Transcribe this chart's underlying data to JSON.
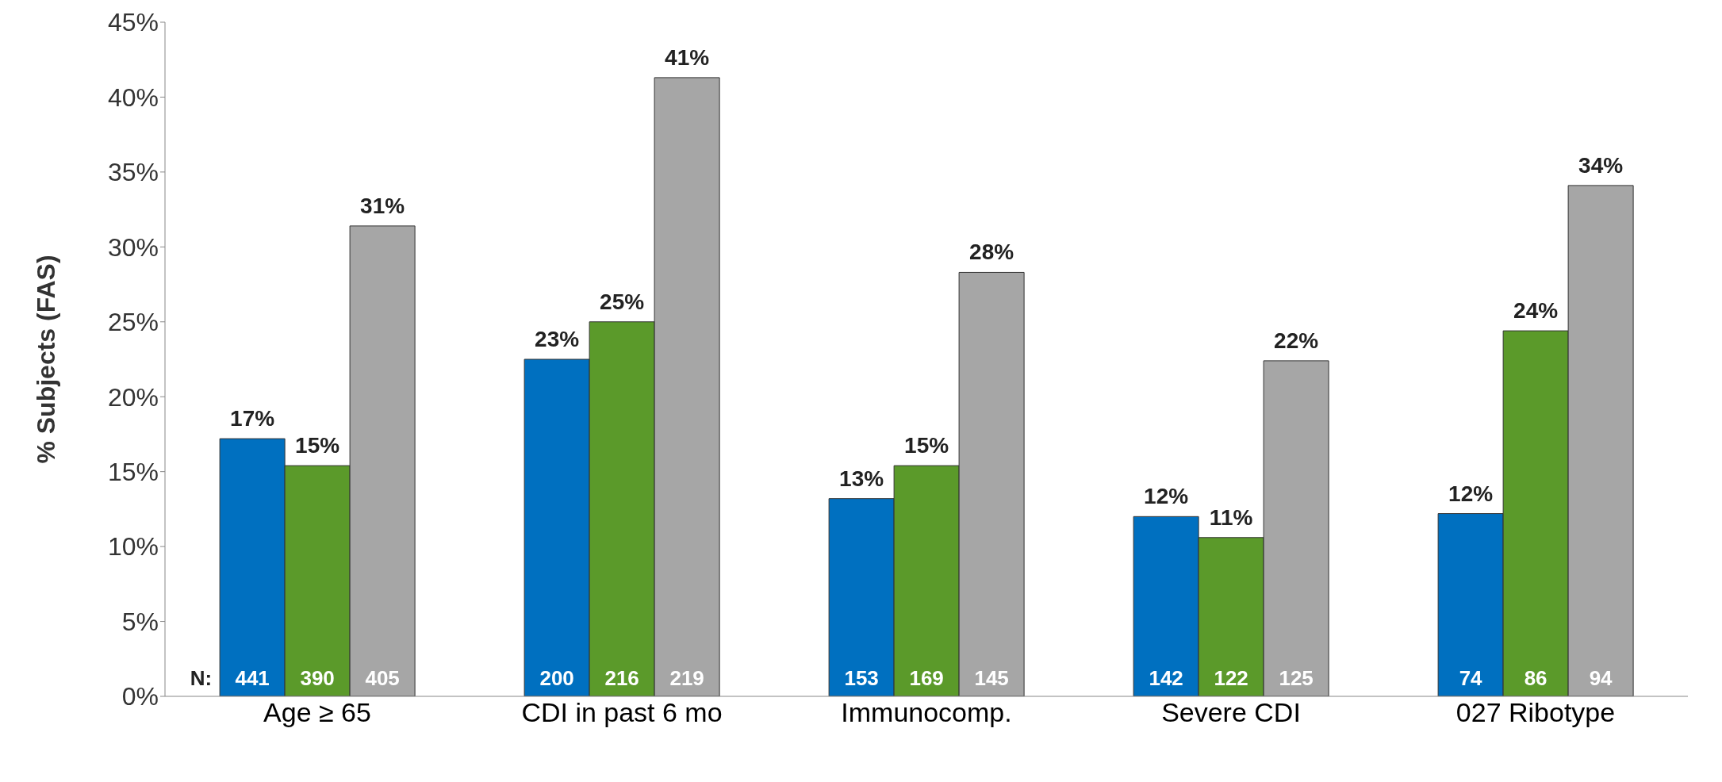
{
  "chart_data": {
    "type": "bar",
    "ylabel": "% Subjects (FAS)",
    "categories": [
      "Age ≥ 65",
      "CDI in past 6 mo",
      "Immunocomp.",
      "Severe CDI",
      "027 Ribotype"
    ],
    "series": [
      {
        "color": "#0070c0",
        "values": [
          17.2,
          22.5,
          13.2,
          12.0,
          12.2
        ],
        "value_labels": [
          "17%",
          "23%",
          "13%",
          "12%",
          "12%"
        ]
      },
      {
        "color": "#5b9a2a",
        "values": [
          15.4,
          25.0,
          15.4,
          10.6,
          24.4
        ],
        "value_labels": [
          "15%",
          "25%",
          "15%",
          "11%",
          "24%"
        ]
      },
      {
        "color": "#a6a6a6",
        "values": [
          31.4,
          41.3,
          28.3,
          22.4,
          34.1
        ],
        "value_labels": [
          "31%",
          "41%",
          "28%",
          "22%",
          "34%"
        ]
      }
    ],
    "ylim": [
      0,
      45
    ],
    "yticks": [
      {
        "value": 0,
        "label": "0%"
      },
      {
        "value": 5,
        "label": "5%"
      },
      {
        "value": 10,
        "label": "10%"
      },
      {
        "value": 15,
        "label": "15%"
      },
      {
        "value": 20,
        "label": "20%"
      },
      {
        "value": 25,
        "label": "25%"
      },
      {
        "value": 30,
        "label": "30%"
      },
      {
        "value": 35,
        "label": "35%"
      },
      {
        "value": 40,
        "label": "40%"
      },
      {
        "value": 45,
        "label": "45%"
      }
    ],
    "annotations": [
      "N:",
      "441",
      "390",
      "405",
      "200",
      "216",
      "219",
      "153",
      "169",
      "145",
      "142",
      "122",
      "125",
      "74",
      "86",
      "94"
    ],
    "grid": false,
    "legend": false
  }
}
